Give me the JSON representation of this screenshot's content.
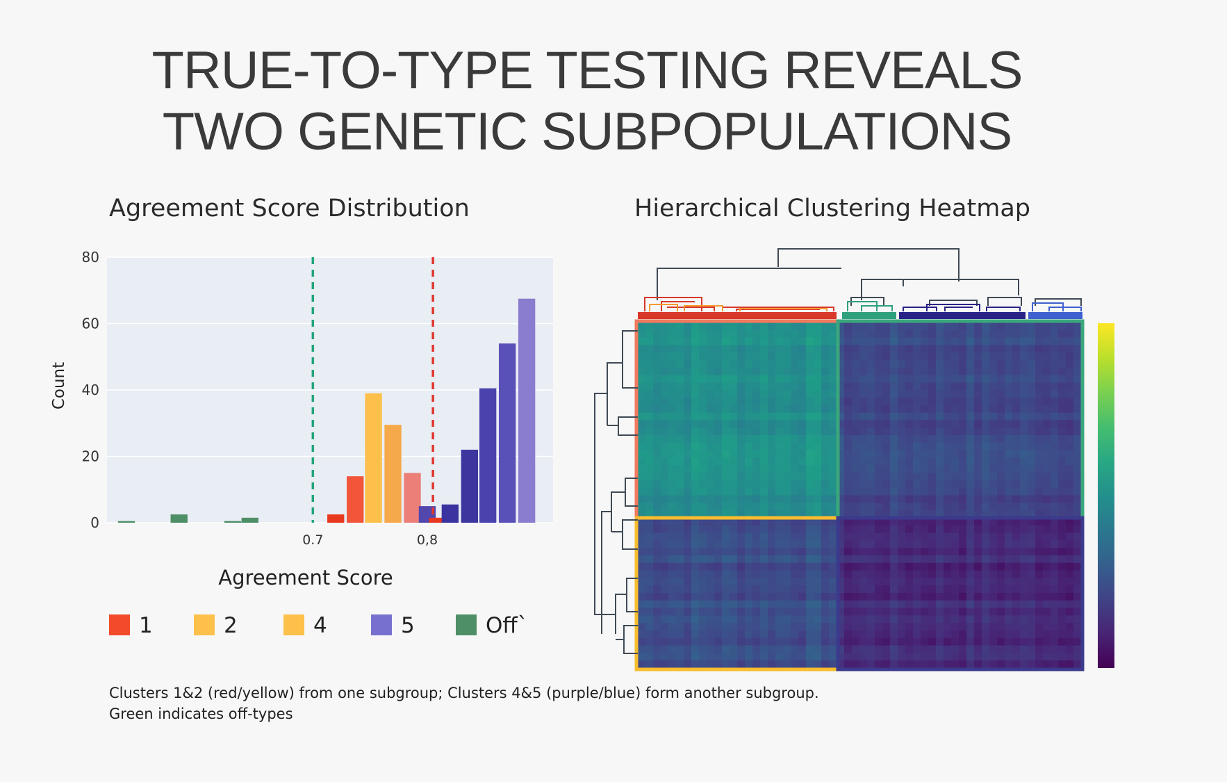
{
  "title": {
    "line1": "TRUE-TO-TYPE TESTING REVEALS",
    "line2": "TWO GENETIC SUBPOPULATIONS"
  },
  "caption": {
    "line1": "Clusters 1&2 (red/yellow) from one subgroup; Clusters 4&5 (purple/blue) form another subgroup.",
    "line2": "Green indicates off-types"
  },
  "colors": {
    "cluster1": "#f24a2a",
    "cluster2": "#fdc04a",
    "cluster4": "#fdc04a",
    "cluster5": "#7770cf",
    "offtype": "#4e8f67",
    "threshold_low": "#22a57a",
    "threshold_high": "#e0372f",
    "plot_bg": "#e9edf4"
  },
  "chart_data": [
    {
      "type": "bar",
      "title": "Agreement Score Distribution",
      "xlabel": "Agreement Score",
      "ylabel": "Count",
      "xlim": [
        0.52,
        0.91
      ],
      "ylim": [
        0,
        80
      ],
      "yticks": [
        "0",
        "20",
        "40",
        "60",
        "80"
      ],
      "ytick_values": [
        0,
        20,
        40,
        60,
        80
      ],
      "xticks": [
        "0.7",
        "0,8"
      ],
      "xtick_values": [
        0.7,
        0.8
      ],
      "grid": true,
      "thresholds": [
        {
          "x": 0.7,
          "color": "#22a57a",
          "style": "dashed"
        },
        {
          "x": 0.805,
          "color": "#e0372f",
          "style": "dashed"
        }
      ],
      "bin_width": 0.016,
      "bars": [
        {
          "x": 0.537,
          "value": 0.5,
          "color": "#4e8f67"
        },
        {
          "x": 0.583,
          "value": 2.5,
          "color": "#4e8f67"
        },
        {
          "x": 0.63,
          "value": 0.5,
          "color": "#4e8f67"
        },
        {
          "x": 0.645,
          "value": 1.5,
          "color": "#4e8f67"
        },
        {
          "x": 0.72,
          "value": 2.5,
          "color": "#e8391f"
        },
        {
          "x": 0.737,
          "value": 14,
          "color": "#f2553a"
        },
        {
          "x": 0.753,
          "value": 39,
          "color": "#fdc04a"
        },
        {
          "x": 0.77,
          "value": 29.5,
          "color": "#f5a94a"
        },
        {
          "x": 0.787,
          "value": 15,
          "color": "#ec7f78"
        },
        {
          "x": 0.8,
          "value": 5,
          "color": "#5147ad"
        },
        {
          "x": 0.809,
          "value": 1.5,
          "color": "#e8391f"
        },
        {
          "x": 0.82,
          "value": 5.5,
          "color": "#3a33a0"
        },
        {
          "x": 0.837,
          "value": 22,
          "color": "#3e369f"
        },
        {
          "x": 0.853,
          "value": 40.5,
          "color": "#4b43ad"
        },
        {
          "x": 0.87,
          "value": 54,
          "color": "#5a51b8"
        },
        {
          "x": 0.887,
          "value": 67.5,
          "color": "#8a7ccf"
        }
      ],
      "legend": {
        "placement": "bottom",
        "entries": [
          {
            "label": "1",
            "color": "#f24a2a"
          },
          {
            "label": "2",
            "color": "#fdc04a"
          },
          {
            "label": "4",
            "color": "#fdc04a"
          },
          {
            "label": "5",
            "color": "#7770cf"
          },
          {
            "label": "Off`",
            "color": "#4e8f67"
          }
        ]
      }
    },
    {
      "type": "heatmap",
      "title": "Hierarchical Clustering Heatmap",
      "blocks": [
        {
          "rows": "A",
          "cols": "A",
          "level": 0.5,
          "outline": "#f27a5e"
        },
        {
          "rows": "A",
          "cols": "B",
          "level": 0.22,
          "outline": "#3aa67c"
        },
        {
          "rows": "B",
          "cols": "A",
          "level": 0.24,
          "outline": "#f8bd2e"
        },
        {
          "rows": "B",
          "cols": "B",
          "level": 0.12,
          "outline": "#3b3a8c"
        }
      ],
      "col_clusters": [
        {
          "color": "#d8382a"
        },
        {
          "color": "#2fa07e"
        },
        {
          "color": "#2a2386"
        },
        {
          "color": "#3f5fcf"
        }
      ],
      "colorbar": {
        "colormap": "viridis",
        "labels": []
      }
    }
  ]
}
